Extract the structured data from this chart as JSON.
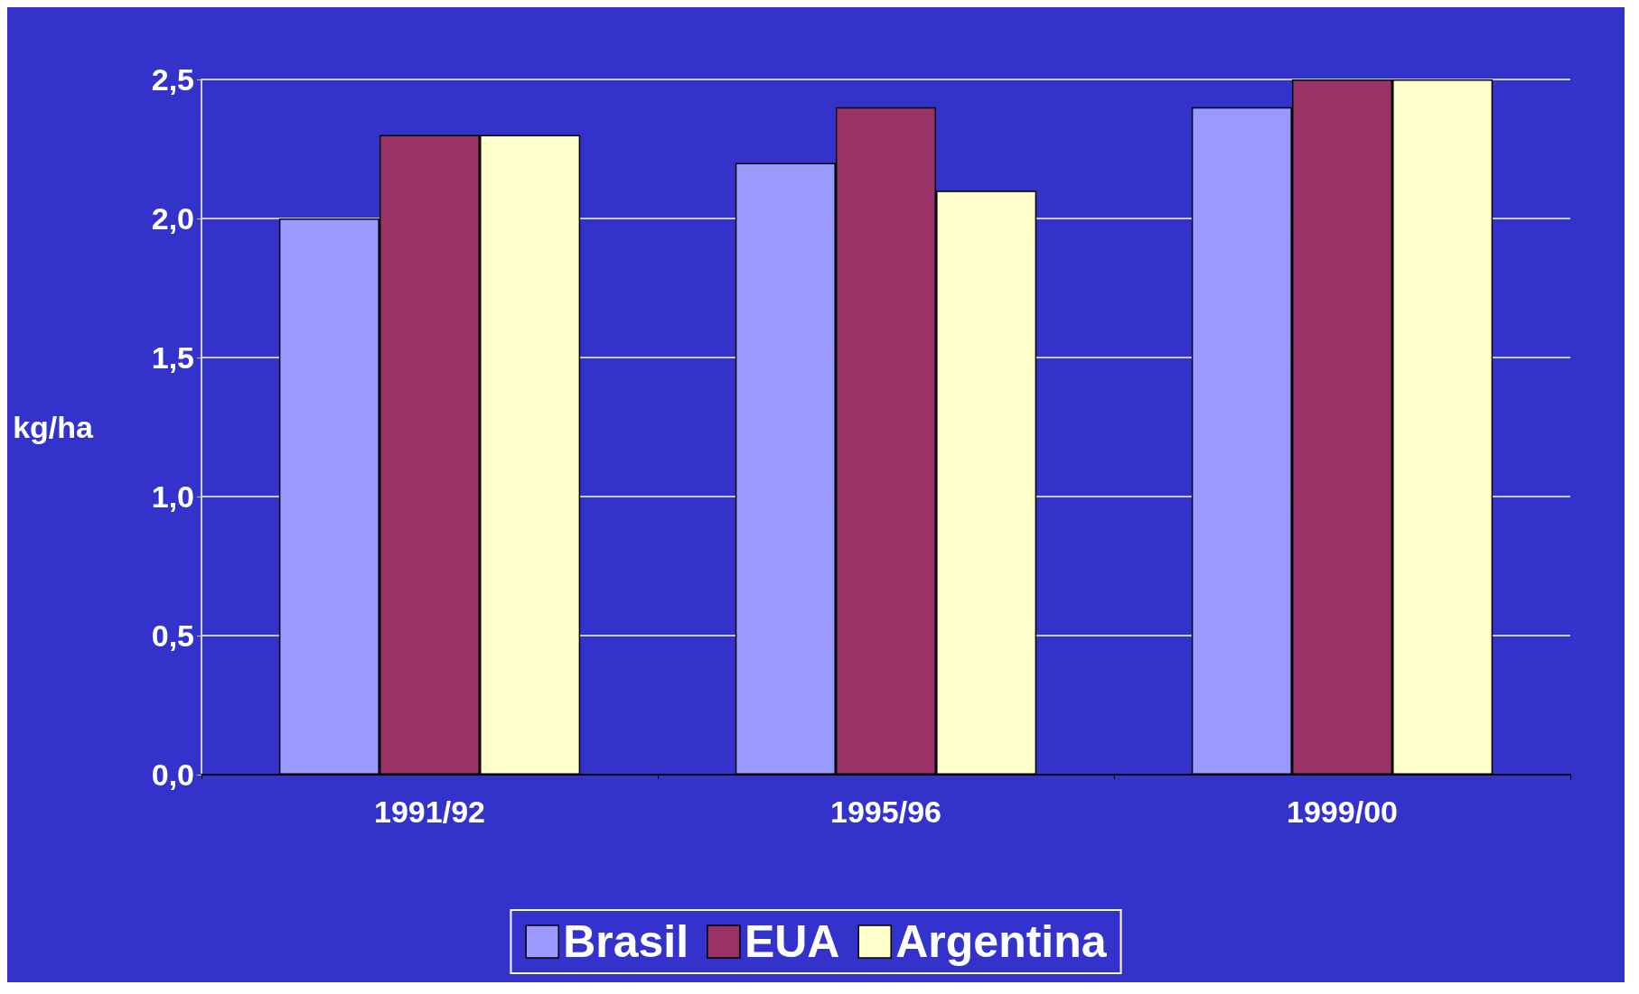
{
  "chart_data": {
    "type": "bar",
    "ylabel": "kg/ha",
    "categories": [
      "1991/92",
      "1995/96",
      "1999/00"
    ],
    "series": [
      {
        "name": "Brasil",
        "color": "#9999ff",
        "values": [
          2.0,
          2.2,
          2.4
        ]
      },
      {
        "name": "EUA",
        "color": "#993366",
        "values": [
          2.3,
          2.4,
          2.5
        ]
      },
      {
        "name": "Argentina",
        "color": "#ffffcc",
        "values": [
          2.3,
          2.1,
          2.5
        ]
      }
    ],
    "ylim": [
      0,
      2.5
    ],
    "yticks": [
      {
        "value": 0,
        "label": "0,0"
      },
      {
        "value": 0.5,
        "label": "0,5"
      },
      {
        "value": 1,
        "label": "1,0"
      },
      {
        "value": 1.5,
        "label": "1,5"
      },
      {
        "value": 2,
        "label": "2,0"
      },
      {
        "value": 2.5,
        "label": "2,5"
      }
    ],
    "grid": "y",
    "legend": "bottom"
  }
}
